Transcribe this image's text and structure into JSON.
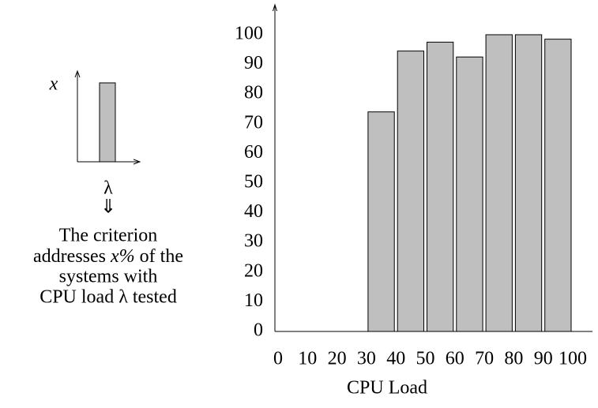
{
  "chart_data": {
    "type": "histogram",
    "x_label": "CPU Load",
    "bins": [
      0,
      10,
      20,
      30,
      40,
      50,
      60,
      70,
      80,
      90,
      100
    ],
    "values": [
      0,
      0,
      0,
      74,
      94.5,
      97.5,
      92.5,
      100,
      100,
      98.5
    ],
    "color": "#bfbfbf",
    "xlim": [
      0,
      100
    ],
    "xticks": [
      0,
      10,
      20,
      30,
      40,
      50,
      60,
      70,
      80,
      90,
      100
    ],
    "ylim": [
      0,
      100
    ],
    "yticks": [
      0,
      10,
      20,
      30,
      40,
      50,
      60,
      70,
      80,
      90,
      100
    ]
  },
  "legend_inset": {
    "axis_label": "x",
    "symbol": "λ",
    "arrow": "⇓",
    "caption": [
      "The criterion",
      [
        "addresses ",
        "x%",
        " of the"
      ],
      "systems with",
      "CPU load λ tested"
    ]
  }
}
